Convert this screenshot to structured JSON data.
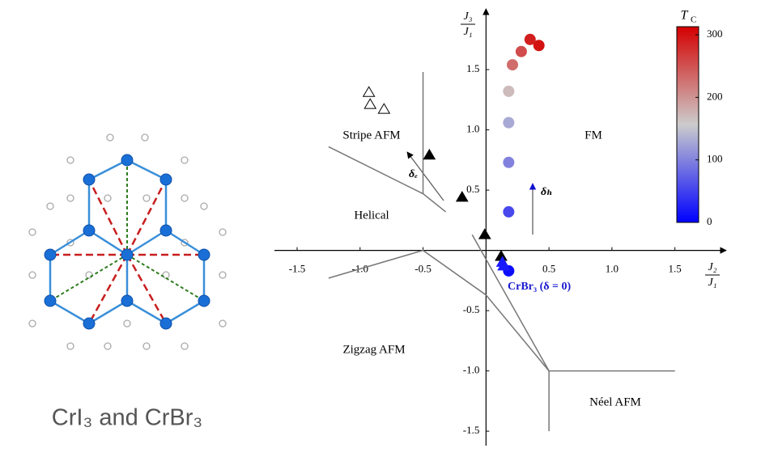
{
  "caption": "CrI₃ and CrBr₃",
  "chart_data": {
    "type": "scatter",
    "xlabel": {
      "numerator": "J₂",
      "denominator": "J₁"
    },
    "ylabel": {
      "numerator": "J₃",
      "denominator": "J₁"
    },
    "xlim": [
      -1.68,
      1.92
    ],
    "ylim": [
      -1.62,
      1.95
    ],
    "xticks": [
      -1.5,
      {
        "value": -1,
        "label": "-1.0"
      },
      -0.5,
      0.5,
      {
        "value": 1,
        "label": "1.0"
      },
      1.5
    ],
    "yticks": [
      -1.5,
      {
        "value": -1,
        "label": "-1.0"
      },
      -0.5,
      0.5,
      {
        "value": 1,
        "label": "1.0"
      },
      1.5
    ],
    "colorbar": {
      "label": "T",
      "label_sub": "C",
      "lim": [
        0,
        313
      ],
      "ticks": [
        0,
        100,
        200,
        300
      ],
      "colormap": [
        "#0000ff",
        "#cccccc",
        "#d40000"
      ]
    },
    "series": [
      {
        "marker": "circle",
        "x": [
          0.42,
          0.35,
          0.28,
          0.21,
          0.18,
          0.18,
          0.18,
          0.18,
          0.18
        ],
        "y": [
          1.7,
          1.75,
          1.65,
          1.54,
          1.32,
          1.06,
          0.73,
          0.32,
          -0.17
        ],
        "tc": [
          300,
          290,
          255,
          230,
          170,
          130,
          100,
          55,
          10
        ]
      },
      {
        "marker": "triangle",
        "color": "#000000",
        "x": [
          -0.45,
          -0.19,
          -0.01,
          0.12
        ],
        "y": [
          0.79,
          0.44,
          0.13,
          -0.05
        ]
      },
      {
        "marker": "triangle-open",
        "color": "#000000",
        "x": [
          -0.93,
          -0.92,
          -0.81
        ],
        "y": [
          1.31,
          1.21,
          1.17
        ]
      },
      {
        "marker": "triangle",
        "color": "#1a1aff",
        "x": [
          0.13,
          0.14
        ],
        "y": [
          -0.1,
          -0.13
        ]
      }
    ],
    "boundaries": [
      {
        "x": [
          -0.5,
          -0.5
        ],
        "y": [
          1.48,
          0.47
        ]
      },
      {
        "x": [
          -1.25,
          -0.5,
          -0.32
        ],
        "y": [
          0.86,
          0.47,
          0.32
        ]
      },
      {
        "x": [
          -1.25,
          -0.5,
          0,
          0.5
        ],
        "y": [
          -0.23,
          0,
          -0.37,
          -1.0
        ]
      },
      {
        "x": [
          -0.11,
          0.5
        ],
        "y": [
          0.13,
          -1.0
        ]
      },
      {
        "x": [
          0.5,
          1.5
        ],
        "y": [
          -1.0,
          -1.0
        ]
      },
      {
        "x": [
          0.5,
          0.5
        ],
        "y": [
          -1.0,
          -1.5
        ]
      }
    ],
    "phases": [
      "Stripe AFM",
      "Helical",
      "FM",
      "Zigzag AFM",
      "Néel AFM"
    ],
    "annotations": [
      "δₑ",
      "δₕ",
      "CrBr₃ (δ = 0)"
    ]
  }
}
